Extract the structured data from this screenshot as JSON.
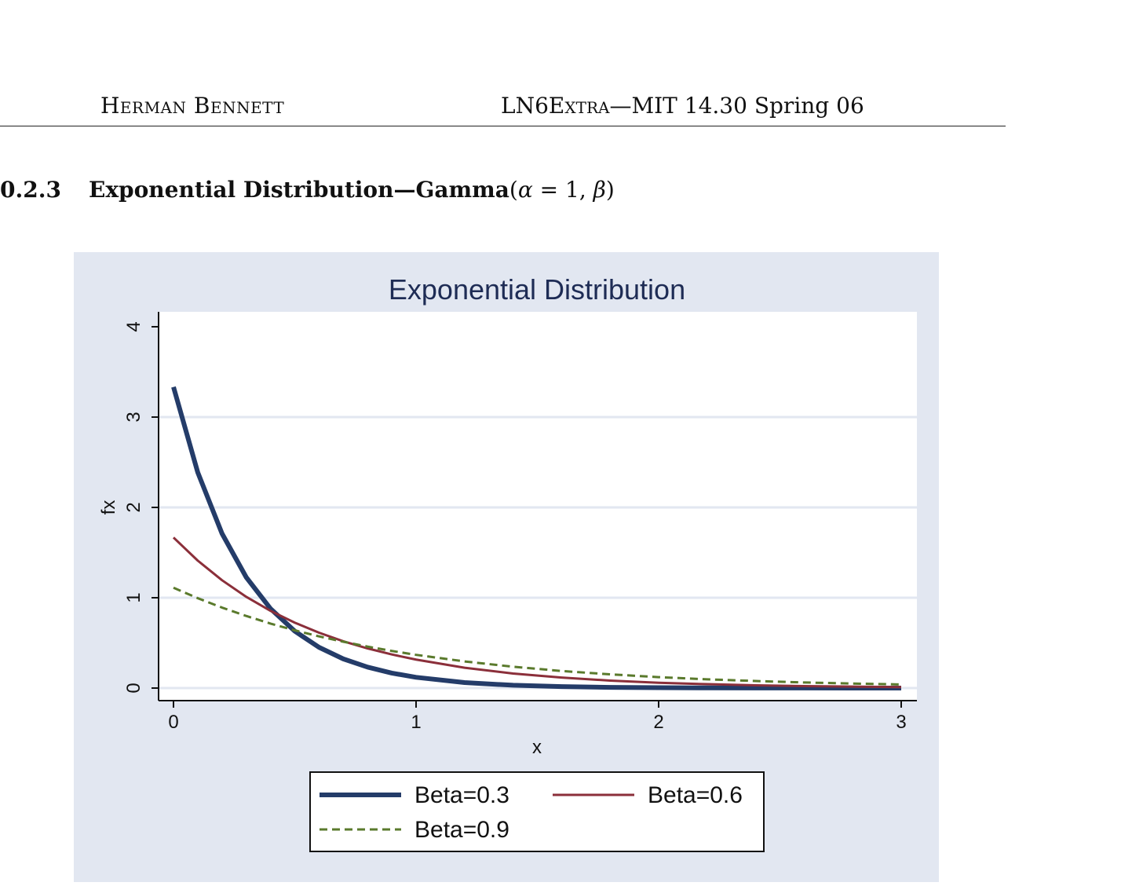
{
  "header": {
    "author": "Herman Bennett",
    "doc_id": "LN6",
    "doc_extra": "Extra",
    "course": "—MIT 14.30",
    "term": "Spring 06"
  },
  "section": {
    "number": "0.2.3",
    "title": "Exponential Distribution—Gamma",
    "params_open": "(",
    "alpha": "α",
    "alpha_eq": " = 1, ",
    "beta": "β",
    "params_close": ")"
  },
  "colors": {
    "plot_region_bg": "#e2e7f1",
    "plot_area_bg": "#ffffff",
    "gridline": "#e2e7f1",
    "title": "#1e2c55",
    "series_0": "#243c69",
    "series_1": "#8b2f3a",
    "series_2": "#5a7a2c"
  },
  "chart_data": {
    "type": "line",
    "title": "Exponential Distribution",
    "xlabel": "x",
    "ylabel": "fx",
    "xlim": [
      0,
      3
    ],
    "ylim": [
      0,
      4
    ],
    "xticks": [
      0,
      1,
      2,
      3
    ],
    "yticks": [
      0,
      1,
      2,
      3,
      4
    ],
    "grid": "horizontal",
    "legend_position": "bottom",
    "x": [
      0,
      0.1,
      0.2,
      0.3,
      0.4,
      0.5,
      0.6,
      0.7,
      0.8,
      0.9,
      1.0,
      1.2,
      1.4,
      1.6,
      1.8,
      2.0,
      2.2,
      2.4,
      2.6,
      2.8,
      3.0
    ],
    "series": [
      {
        "name": "Beta=0.3",
        "style": "solid-thick",
        "values": [
          3.333,
          2.388,
          1.711,
          1.226,
          0.879,
          0.63,
          0.451,
          0.323,
          0.232,
          0.166,
          0.119,
          0.061,
          0.031,
          0.016,
          0.008,
          0.004,
          0.002,
          0.001,
          0.001,
          0.0,
          0.0
        ]
      },
      {
        "name": "Beta=0.6",
        "style": "solid",
        "values": [
          1.667,
          1.411,
          1.194,
          1.01,
          0.855,
          0.724,
          0.613,
          0.518,
          0.439,
          0.372,
          0.315,
          0.225,
          0.161,
          0.116,
          0.083,
          0.059,
          0.043,
          0.03,
          0.022,
          0.016,
          0.011
        ]
      },
      {
        "name": "Beta=0.9",
        "style": "dashed",
        "values": [
          1.111,
          0.995,
          0.891,
          0.798,
          0.714,
          0.639,
          0.572,
          0.513,
          0.459,
          0.411,
          0.368,
          0.295,
          0.236,
          0.189,
          0.152,
          0.121,
          0.097,
          0.078,
          0.062,
          0.05,
          0.04
        ]
      }
    ]
  }
}
